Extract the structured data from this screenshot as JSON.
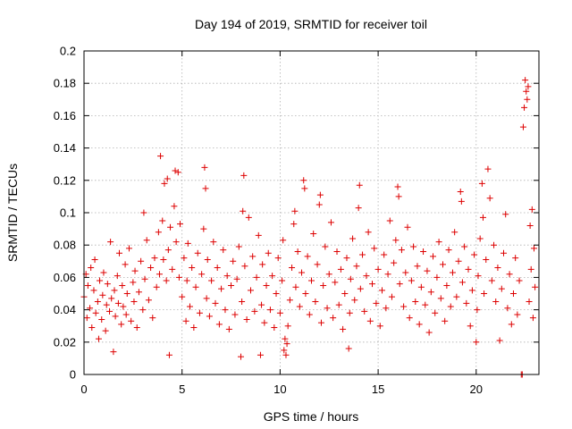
{
  "chart_data": {
    "type": "scatter",
    "title": "Day 194 of 2019, SRMTID for receiver toil",
    "xlabel": "GPS time / hours",
    "ylabel": "SRMTID / TECUs",
    "xlim": [
      0,
      23.2
    ],
    "ylim": [
      0,
      0.2
    ],
    "xticks": [
      0,
      5,
      10,
      15,
      20
    ],
    "xtick_labels": [
      "0",
      "5",
      "10",
      "15",
      "20"
    ],
    "yticks": [
      0,
      0.02,
      0.04,
      0.06,
      0.08,
      0.1,
      0.12,
      0.14,
      0.16,
      0.18,
      0.2
    ],
    "ytick_labels": [
      "0",
      "0.02",
      "0.04",
      "0.06",
      "0.08",
      "0.1",
      "0.12",
      "0.14",
      "0.16",
      "0.18",
      "0.2"
    ],
    "grid": true,
    "marker": "plus",
    "series": [
      {
        "name": "",
        "color": "#dd0000",
        "points": [
          [
            0.0,
            0.048
          ],
          [
            0.1,
            0.062
          ],
          [
            0.15,
            0.035
          ],
          [
            0.2,
            0.055
          ],
          [
            0.3,
            0.041
          ],
          [
            0.35,
            0.066
          ],
          [
            0.4,
            0.029
          ],
          [
            0.5,
            0.052
          ],
          [
            0.55,
            0.071
          ],
          [
            0.6,
            0.038
          ],
          [
            0.7,
            0.045
          ],
          [
            0.75,
            0.022
          ],
          [
            0.8,
            0.058
          ],
          [
            0.9,
            0.034
          ],
          [
            0.95,
            0.049
          ],
          [
            1.0,
            0.063
          ],
          [
            1.1,
            0.027
          ],
          [
            1.15,
            0.043
          ],
          [
            1.2,
            0.056
          ],
          [
            1.3,
            0.039
          ],
          [
            1.35,
            0.082
          ],
          [
            1.4,
            0.047
          ],
          [
            1.5,
            0.014
          ],
          [
            1.55,
            0.052
          ],
          [
            1.6,
            0.036
          ],
          [
            1.7,
            0.061
          ],
          [
            1.75,
            0.044
          ],
          [
            1.8,
            0.075
          ],
          [
            1.9,
            0.031
          ],
          [
            1.95,
            0.055
          ],
          [
            2.0,
            0.042
          ],
          [
            2.1,
            0.068
          ],
          [
            2.15,
            0.037
          ],
          [
            2.2,
            0.05
          ],
          [
            2.3,
            0.078
          ],
          [
            2.4,
            0.033
          ],
          [
            2.5,
            0.057
          ],
          [
            2.55,
            0.045
          ],
          [
            2.6,
            0.064
          ],
          [
            2.7,
            0.029
          ],
          [
            2.8,
            0.051
          ],
          [
            2.9,
            0.07
          ],
          [
            3.0,
            0.04
          ],
          [
            3.05,
            0.1
          ],
          [
            3.1,
            0.059
          ],
          [
            3.2,
            0.083
          ],
          [
            3.3,
            0.046
          ],
          [
            3.4,
            0.066
          ],
          [
            3.5,
            0.035
          ],
          [
            3.6,
            0.072
          ],
          [
            3.7,
            0.054
          ],
          [
            3.8,
            0.088
          ],
          [
            3.85,
            0.062
          ],
          [
            3.9,
            0.135
          ],
          [
            4.0,
            0.095
          ],
          [
            4.05,
            0.071
          ],
          [
            4.1,
            0.118
          ],
          [
            4.2,
            0.058
          ],
          [
            4.25,
            0.121
          ],
          [
            4.3,
            0.077
          ],
          [
            4.35,
            0.012
          ],
          [
            4.4,
            0.091
          ],
          [
            4.5,
            0.065
          ],
          [
            4.6,
            0.104
          ],
          [
            4.65,
            0.126
          ],
          [
            4.7,
            0.082
          ],
          [
            4.8,
            0.125
          ],
          [
            4.85,
            0.06
          ],
          [
            4.9,
            0.093
          ],
          [
            5.0,
            0.048
          ],
          [
            5.1,
            0.072
          ],
          [
            5.2,
            0.033
          ],
          [
            5.25,
            0.058
          ],
          [
            5.3,
            0.081
          ],
          [
            5.4,
            0.042
          ],
          [
            5.5,
            0.066
          ],
          [
            5.6,
            0.029
          ],
          [
            5.7,
            0.054
          ],
          [
            5.8,
            0.075
          ],
          [
            5.9,
            0.038
          ],
          [
            6.0,
            0.062
          ],
          [
            6.1,
            0.09
          ],
          [
            6.15,
            0.128
          ],
          [
            6.2,
            0.115
          ],
          [
            6.25,
            0.047
          ],
          [
            6.3,
            0.071
          ],
          [
            6.4,
            0.036
          ],
          [
            6.5,
            0.058
          ],
          [
            6.6,
            0.082
          ],
          [
            6.7,
            0.044
          ],
          [
            6.8,
            0.066
          ],
          [
            6.9,
            0.031
          ],
          [
            7.0,
            0.053
          ],
          [
            7.1,
            0.077
          ],
          [
            7.2,
            0.04
          ],
          [
            7.3,
            0.061
          ],
          [
            7.4,
            0.028
          ],
          [
            7.5,
            0.055
          ],
          [
            7.6,
            0.07
          ],
          [
            7.7,
            0.037
          ],
          [
            7.8,
            0.059
          ],
          [
            7.9,
            0.079
          ],
          [
            8.0,
            0.011
          ],
          [
            8.05,
            0.045
          ],
          [
            8.1,
            0.101
          ],
          [
            8.15,
            0.123
          ],
          [
            8.2,
            0.067
          ],
          [
            8.3,
            0.034
          ],
          [
            8.4,
            0.097
          ],
          [
            8.5,
            0.052
          ],
          [
            8.6,
            0.073
          ],
          [
            8.7,
            0.039
          ],
          [
            8.8,
            0.06
          ],
          [
            8.9,
            0.086
          ],
          [
            9.0,
            0.012
          ],
          [
            9.05,
            0.043
          ],
          [
            9.1,
            0.068
          ],
          [
            9.2,
            0.032
          ],
          [
            9.3,
            0.055
          ],
          [
            9.4,
            0.075
          ],
          [
            9.5,
            0.04
          ],
          [
            9.6,
            0.061
          ],
          [
            9.7,
            0.029
          ],
          [
            9.8,
            0.05
          ],
          [
            9.9,
            0.072
          ],
          [
            10.0,
            0.038
          ],
          [
            10.1,
            0.058
          ],
          [
            10.15,
            0.083
          ],
          [
            10.2,
            0.015
          ],
          [
            10.25,
            0.022
          ],
          [
            10.3,
            0.012
          ],
          [
            10.35,
            0.019
          ],
          [
            10.4,
            0.03
          ],
          [
            10.5,
            0.046
          ],
          [
            10.6,
            0.066
          ],
          [
            10.7,
            0.093
          ],
          [
            10.75,
            0.101
          ],
          [
            10.8,
            0.054
          ],
          [
            10.9,
            0.076
          ],
          [
            11.0,
            0.042
          ],
          [
            11.1,
            0.063
          ],
          [
            11.2,
            0.12
          ],
          [
            11.25,
            0.115
          ],
          [
            11.3,
            0.05
          ],
          [
            11.4,
            0.073
          ],
          [
            11.5,
            0.037
          ],
          [
            11.6,
            0.058
          ],
          [
            11.7,
            0.087
          ],
          [
            11.8,
            0.045
          ],
          [
            11.9,
            0.068
          ],
          [
            12.0,
            0.105
          ],
          [
            12.05,
            0.111
          ],
          [
            12.1,
            0.032
          ],
          [
            12.2,
            0.055
          ],
          [
            12.3,
            0.079
          ],
          [
            12.4,
            0.041
          ],
          [
            12.5,
            0.062
          ],
          [
            12.6,
            0.094
          ],
          [
            12.7,
            0.035
          ],
          [
            12.8,
            0.057
          ],
          [
            12.9,
            0.076
          ],
          [
            13.0,
            0.043
          ],
          [
            13.1,
            0.065
          ],
          [
            13.2,
            0.028
          ],
          [
            13.3,
            0.05
          ],
          [
            13.4,
            0.072
          ],
          [
            13.5,
            0.016
          ],
          [
            13.55,
            0.038
          ],
          [
            13.6,
            0.059
          ],
          [
            13.7,
            0.084
          ],
          [
            13.8,
            0.046
          ],
          [
            13.9,
            0.067
          ],
          [
            14.0,
            0.103
          ],
          [
            14.05,
            0.117
          ],
          [
            14.1,
            0.053
          ],
          [
            14.2,
            0.074
          ],
          [
            14.3,
            0.039
          ],
          [
            14.4,
            0.061
          ],
          [
            14.5,
            0.088
          ],
          [
            14.6,
            0.033
          ],
          [
            14.7,
            0.056
          ],
          [
            14.8,
            0.078
          ],
          [
            14.9,
            0.044
          ],
          [
            15.0,
            0.065
          ],
          [
            15.1,
            0.03
          ],
          [
            15.2,
            0.052
          ],
          [
            15.3,
            0.074
          ],
          [
            15.4,
            0.041
          ],
          [
            15.5,
            0.062
          ],
          [
            15.6,
            0.095
          ],
          [
            15.7,
            0.048
          ],
          [
            15.8,
            0.069
          ],
          [
            15.9,
            0.083
          ],
          [
            16.0,
            0.116
          ],
          [
            16.05,
            0.11
          ],
          [
            16.1,
            0.056
          ],
          [
            16.2,
            0.077
          ],
          [
            16.3,
            0.042
          ],
          [
            16.4,
            0.063
          ],
          [
            16.5,
            0.091
          ],
          [
            16.6,
            0.035
          ],
          [
            16.7,
            0.058
          ],
          [
            16.8,
            0.079
          ],
          [
            16.9,
            0.045
          ],
          [
            17.0,
            0.067
          ],
          [
            17.1,
            0.031
          ],
          [
            17.2,
            0.054
          ],
          [
            17.3,
            0.076
          ],
          [
            17.4,
            0.043
          ],
          [
            17.5,
            0.064
          ],
          [
            17.6,
            0.026
          ],
          [
            17.7,
            0.051
          ],
          [
            17.8,
            0.073
          ],
          [
            17.9,
            0.038
          ],
          [
            18.0,
            0.06
          ],
          [
            18.1,
            0.082
          ],
          [
            18.2,
            0.047
          ],
          [
            18.3,
            0.068
          ],
          [
            18.4,
            0.033
          ],
          [
            18.5,
            0.055
          ],
          [
            18.6,
            0.077
          ],
          [
            18.7,
            0.042
          ],
          [
            18.8,
            0.063
          ],
          [
            18.9,
            0.088
          ],
          [
            19.0,
            0.048
          ],
          [
            19.1,
            0.07
          ],
          [
            19.2,
            0.113
          ],
          [
            19.25,
            0.107
          ],
          [
            19.3,
            0.057
          ],
          [
            19.4,
            0.079
          ],
          [
            19.5,
            0.044
          ],
          [
            19.6,
            0.065
          ],
          [
            19.7,
            0.03
          ],
          [
            19.8,
            0.052
          ],
          [
            19.9,
            0.074
          ],
          [
            20.0,
            0.02
          ],
          [
            20.05,
            0.04
          ],
          [
            20.1,
            0.061
          ],
          [
            20.2,
            0.084
          ],
          [
            20.3,
            0.118
          ],
          [
            20.35,
            0.097
          ],
          [
            20.4,
            0.05
          ],
          [
            20.5,
            0.071
          ],
          [
            20.6,
            0.127
          ],
          [
            20.7,
            0.109
          ],
          [
            20.8,
            0.058
          ],
          [
            20.9,
            0.08
          ],
          [
            21.0,
            0.045
          ],
          [
            21.1,
            0.066
          ],
          [
            21.2,
            0.021
          ],
          [
            21.3,
            0.053
          ],
          [
            21.4,
            0.075
          ],
          [
            21.5,
            0.099
          ],
          [
            21.6,
            0.041
          ],
          [
            21.7,
            0.062
          ],
          [
            21.8,
            0.031
          ],
          [
            21.9,
            0.05
          ],
          [
            22.0,
            0.072
          ],
          [
            22.1,
            0.037
          ],
          [
            22.2,
            0.058
          ],
          [
            22.3,
            0.0
          ],
          [
            22.35,
            0.0
          ],
          [
            22.4,
            0.153
          ],
          [
            22.45,
            0.165
          ],
          [
            22.5,
            0.182
          ],
          [
            22.55,
            0.175
          ],
          [
            22.6,
            0.17
          ],
          [
            22.65,
            0.178
          ],
          [
            22.7,
            0.045
          ],
          [
            22.75,
            0.092
          ],
          [
            22.8,
            0.065
          ],
          [
            22.85,
            0.102
          ],
          [
            22.9,
            0.035
          ],
          [
            22.95,
            0.078
          ],
          [
            23.0,
            0.054
          ]
        ]
      }
    ]
  }
}
